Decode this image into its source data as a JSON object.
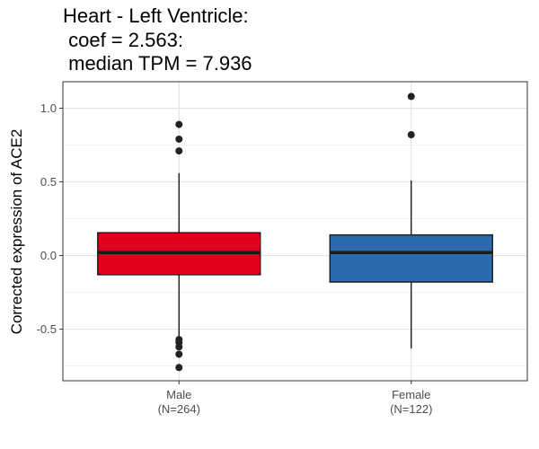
{
  "chart_data": {
    "type": "box",
    "title_lines": [
      "Heart - Left Ventricle:",
      " coef = 2.563:",
      " median TPM = 7.936"
    ],
    "ylabel": "Corrected expression of ACE2",
    "xlabel": "",
    "ylim": [
      -0.85,
      1.18
    ],
    "yticks": [
      -0.5,
      0.0,
      0.5,
      1.0
    ],
    "ytick_labels": [
      "-0.5",
      "0.0",
      "0.5",
      "1.0"
    ],
    "grid": true,
    "groups": [
      {
        "label": "Male",
        "n_label": "(N=264)",
        "color": "#e0001b",
        "q1": -0.13,
        "median": 0.02,
        "q3": 0.155,
        "whisker_low": -0.57,
        "whisker_high": 0.56,
        "outliers": [
          0.89,
          0.79,
          0.71,
          -0.57,
          -0.59,
          -0.62,
          -0.67,
          -0.76
        ]
      },
      {
        "label": "Female",
        "n_label": "(N=122)",
        "color": "#2b6aad",
        "q1": -0.18,
        "median": 0.02,
        "q3": 0.14,
        "whisker_low": -0.63,
        "whisker_high": 0.51,
        "outliers": [
          1.08,
          0.82
        ]
      }
    ]
  }
}
